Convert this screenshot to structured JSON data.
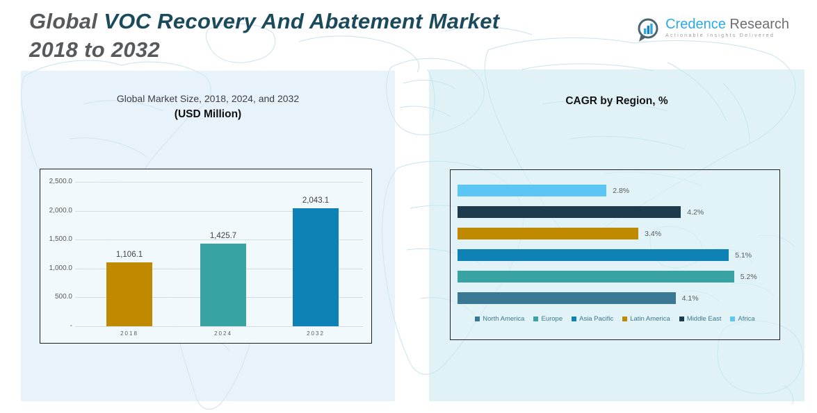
{
  "header": {
    "title_part1": "Global",
    "title_part2": "VOC Recovery And Abatement Market",
    "title_line2": "2018 to 2032"
  },
  "logo": {
    "brand_first": "Credence",
    "brand_second": "Research",
    "tagline": "Actionable Insights Delivered"
  },
  "colors": {
    "title_gray": "#58595B",
    "title_teal": "#1B4A5C",
    "brand_blue": "#29ABE2",
    "panel_left": "#E9F2F9",
    "panel_right": "#DDEFF3",
    "map_line": "#C9E2EC",
    "axis_text": "#595959",
    "legend_text": "#3E7990",
    "gold": "#BF8A00",
    "teal": "#38A3A2",
    "blue": "#0E81B5",
    "steel": "#3B7894",
    "navy": "#1C3B4D",
    "sky": "#5BC6F3"
  },
  "chart_data": [
    {
      "type": "bar",
      "title": "Global Market Size, 2018, 2024, and 2032",
      "subtitle": "(USD Million)",
      "categories": [
        "2018",
        "2024",
        "2032"
      ],
      "values": [
        1106.1,
        1425.7,
        2043.1
      ],
      "value_labels": [
        "1,106.1",
        "1,425.7",
        "2,043.1"
      ],
      "bar_colors": [
        "#BF8A00",
        "#38A3A2",
        "#0E81B5"
      ],
      "xlabel": "",
      "ylabel": "",
      "ylim": [
        0,
        2500
      ],
      "yticks": [
        2500,
        2000,
        1500,
        1000,
        500,
        0
      ],
      "ytick_labels": [
        "2,500.0",
        "2,000.0",
        "1,500.0",
        "1,000.0",
        "500.0",
        "-"
      ],
      "grid": true,
      "legend_position": "none"
    },
    {
      "type": "bar",
      "orientation": "horizontal",
      "title": "CAGR by Region, %",
      "xlim": [
        0,
        5.5
      ],
      "grid": false,
      "legend_position": "bottom",
      "rows_top_to_bottom": [
        {
          "name": "Africa",
          "value": 2.8,
          "label": "2.8%",
          "color": "#5BC6F3"
        },
        {
          "name": "Middle East",
          "value": 4.2,
          "label": "4.2%",
          "color": "#1C3B4D"
        },
        {
          "name": "Latin America",
          "value": 3.4,
          "label": "3.4%",
          "color": "#BF8A00"
        },
        {
          "name": "Asia Pacific",
          "value": 5.1,
          "label": "5.1%",
          "color": "#0E81B5"
        },
        {
          "name": "Europe",
          "value": 5.2,
          "label": "5.2%",
          "color": "#38A3A2"
        },
        {
          "name": "North America",
          "value": 4.1,
          "label": "4.1%",
          "color": "#3B7894"
        }
      ],
      "legend": [
        {
          "name": "North America",
          "color": "#3B7894"
        },
        {
          "name": "Europe",
          "color": "#38A3A2"
        },
        {
          "name": "Asia Pacific",
          "color": "#0E81B5"
        },
        {
          "name": "Latin America",
          "color": "#BF8A00"
        },
        {
          "name": "Middle East",
          "color": "#1C3B4D"
        },
        {
          "name": "Africa",
          "color": "#5BC6F3"
        }
      ]
    }
  ]
}
